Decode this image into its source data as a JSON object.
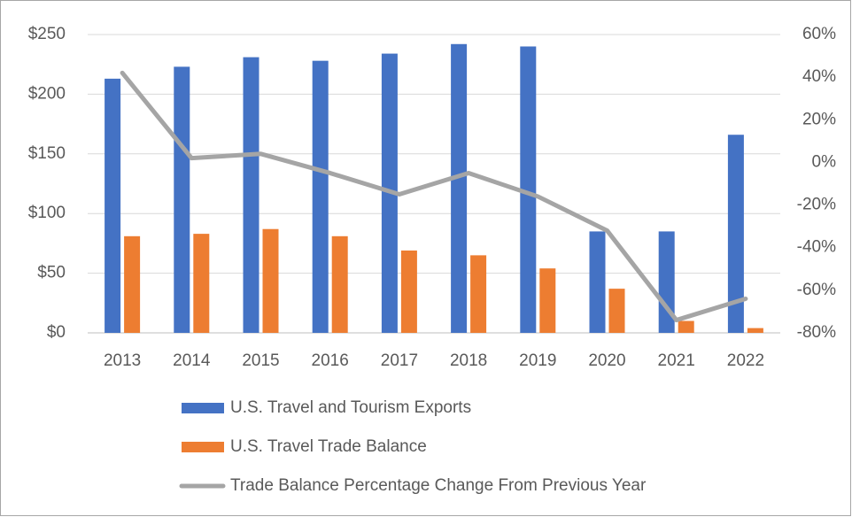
{
  "chart_data": {
    "type": "bar",
    "categories": [
      "2013",
      "2014",
      "2015",
      "2016",
      "2017",
      "2018",
      "2019",
      "2020",
      "2021",
      "2022"
    ],
    "series": [
      {
        "name": "U.S. Travel and Tourism Exports",
        "type": "bar",
        "color": "#4472c4",
        "values": [
          213,
          223,
          231,
          228,
          234,
          242,
          240,
          85,
          85,
          166
        ]
      },
      {
        "name": "U.S. Travel Trade Balance",
        "type": "bar",
        "color": "#ed7d31",
        "values": [
          81,
          83,
          87,
          81,
          69,
          65,
          54,
          37,
          10,
          4
        ]
      },
      {
        "name": "Trade Balance Percentage Change From Previous Year",
        "type": "line",
        "color": "#a5a5a5",
        "axis": "y2",
        "values": [
          42,
          2,
          4,
          -5,
          -15,
          -5,
          -16,
          -32,
          -74,
          -64
        ]
      }
    ],
    "ylim": [
      0,
      250
    ],
    "yticks": [
      {
        "value": 0,
        "label": "$0"
      },
      {
        "value": 50,
        "label": "$50"
      },
      {
        "value": 100,
        "label": "$100"
      },
      {
        "value": 150,
        "label": "$150"
      },
      {
        "value": 200,
        "label": "$200"
      },
      {
        "value": 250,
        "label": "$250"
      }
    ],
    "y2lim": [
      -80,
      60
    ],
    "y2ticks": [
      {
        "value": -80,
        "label": "-80%"
      },
      {
        "value": -60,
        "label": "-60%"
      },
      {
        "value": -40,
        "label": "-40%"
      },
      {
        "value": -20,
        "label": "-20%"
      },
      {
        "value": 0,
        "label": "0%"
      },
      {
        "value": 20,
        "label": "20%"
      },
      {
        "value": 40,
        "label": "40%"
      },
      {
        "value": 60,
        "label": "60%"
      }
    ],
    "grid": true,
    "legend": "bottom"
  }
}
